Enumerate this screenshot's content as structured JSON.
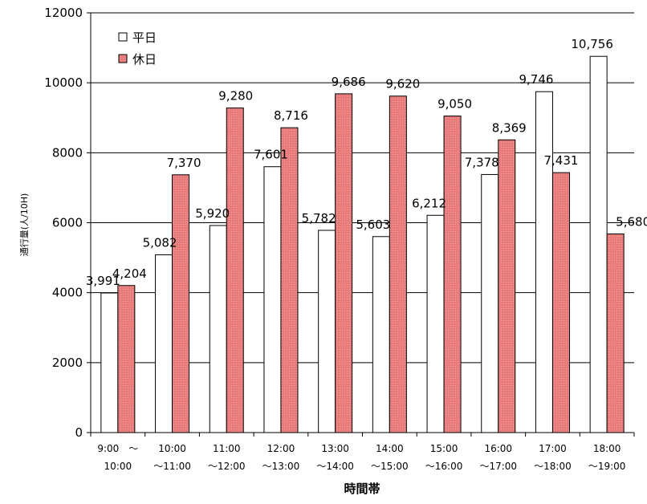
{
  "chart_data": {
    "type": "bar",
    "xlabel": "時間帯",
    "ylabel": "通行量(人/10H)",
    "ylim": [
      0,
      12000
    ],
    "yticks": [
      0,
      2000,
      4000,
      6000,
      8000,
      10000,
      12000
    ],
    "grid": true,
    "legend_position": "top-left",
    "categories": [
      [
        "9:00　～",
        "10:00"
      ],
      [
        "10:00",
        "～11:00"
      ],
      [
        "11:00",
        "～12:00"
      ],
      [
        "12:00",
        "～13:00"
      ],
      [
        "13:00",
        "～14:00"
      ],
      [
        "14:00",
        "～15:00"
      ],
      [
        "15:00",
        "～16:00"
      ],
      [
        "16:00",
        "～17:00"
      ],
      [
        "17:00",
        "～18:00"
      ],
      [
        "18:00",
        "～19:00"
      ]
    ],
    "series": [
      {
        "name": "平日",
        "color": "#ffffff",
        "values": [
          3991,
          5082,
          5920,
          7601,
          5782,
          5603,
          6212,
          7378,
          9746,
          10756
        ],
        "labels": [
          "3,991",
          "5,082",
          "5,920",
          "7,601",
          "5,782",
          "5,603",
          "6,212",
          "7,378",
          "9,746",
          "10,756"
        ]
      },
      {
        "name": "休日",
        "color": "#e87a7a",
        "values": [
          4204,
          7370,
          9280,
          8716,
          9686,
          9620,
          9050,
          8369,
          7431,
          5680
        ],
        "labels": [
          "4,204",
          "7,370",
          "9,280",
          "8,716",
          "9,686",
          "9,620",
          "9,050",
          "8,369",
          "7,431",
          "5,680"
        ]
      }
    ]
  }
}
